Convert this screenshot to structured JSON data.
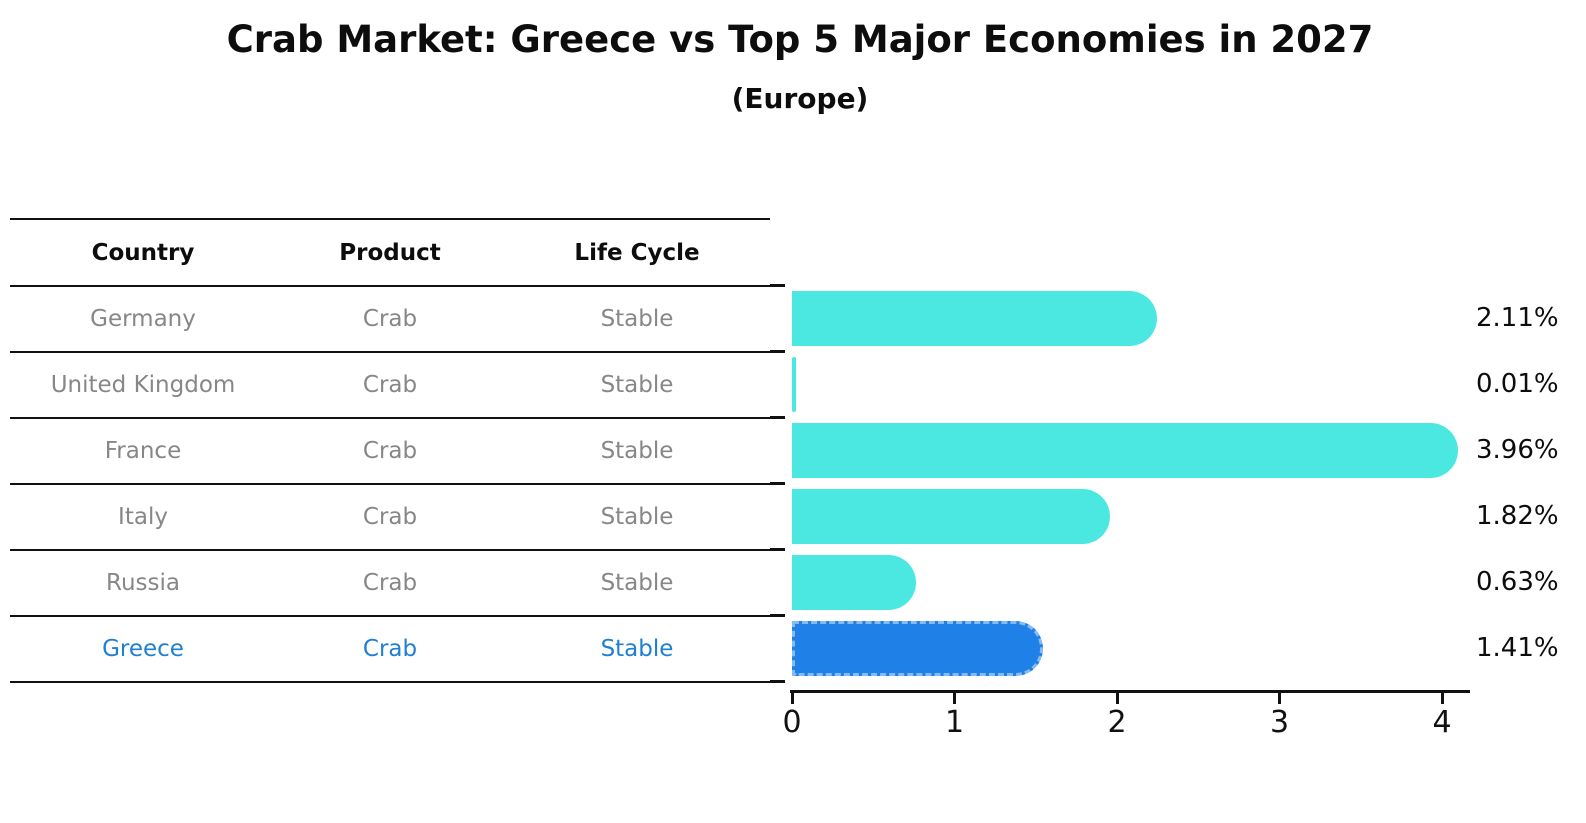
{
  "title": "Crab Market: Greece vs Top 5 Major Economies in 2027",
  "subtitle": "(Europe)",
  "table": {
    "headers": [
      "Country",
      "Product",
      "Life Cycle"
    ],
    "rows": [
      {
        "country": "Germany",
        "product": "Crab",
        "life_cycle": "Stable",
        "highlight": false
      },
      {
        "country": "United Kingdom",
        "product": "Crab",
        "life_cycle": "Stable",
        "highlight": false
      },
      {
        "country": "France",
        "product": "Crab",
        "life_cycle": "Stable",
        "highlight": false
      },
      {
        "country": "Italy",
        "product": "Crab",
        "life_cycle": "Stable",
        "highlight": false
      },
      {
        "country": "Russia",
        "product": "Crab",
        "life_cycle": "Stable",
        "highlight": false
      },
      {
        "country": "Greece",
        "product": "Crab",
        "life_cycle": "Stable",
        "highlight": true
      }
    ]
  },
  "chart_data": {
    "type": "bar",
    "orientation": "horizontal",
    "title": "Crab Market: Greece vs Top 5 Major Economies in 2027 (Europe)",
    "categories": [
      "Germany",
      "United Kingdom",
      "France",
      "Italy",
      "Russia",
      "Greece"
    ],
    "values": [
      2.11,
      0.01,
      3.96,
      1.82,
      0.63,
      1.41
    ],
    "value_labels": [
      "2.11%",
      "0.01%",
      "3.96%",
      "1.82%",
      "0.63%",
      "1.41%"
    ],
    "x_ticks": [
      0,
      1,
      2,
      3,
      4
    ],
    "xlim": [
      0,
      4.16
    ],
    "xlabel": "",
    "ylabel": "",
    "grid": false,
    "legend": "none",
    "highlight_index": 5,
    "colors": {
      "bar": "#4BE8E2",
      "highlight_bar": "#1F80E8",
      "highlight_edge": "#85BAF2"
    }
  },
  "colors": {
    "background": "#ffffff",
    "text_primary": "#0d0d0d",
    "text_muted": "#878787",
    "text_highlight": "#1f7fd1",
    "axis": "#111111"
  }
}
